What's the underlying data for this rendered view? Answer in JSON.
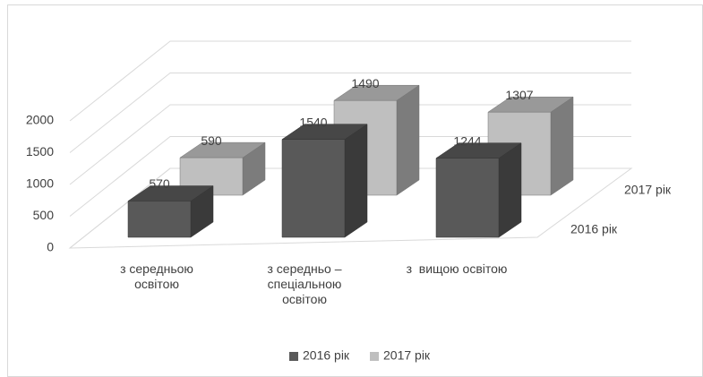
{
  "chart_data": {
    "type": "bar3d",
    "categories": [
      "з середньою освітою",
      "з середньо – спеціальною освітою",
      "з  вищою освітою"
    ],
    "series": [
      {
        "name": "2016 рік",
        "color": "#595959",
        "values": [
          570,
          1540,
          1244
        ]
      },
      {
        "name": "2017 рік",
        "color": "#bfbfbf",
        "values": [
          590,
          1490,
          1307
        ]
      }
    ],
    "ylim": [
      0,
      2000
    ],
    "yticks": [
      0,
      500,
      1000,
      1500,
      2000
    ],
    "grid": true,
    "legend": "bottom"
  }
}
